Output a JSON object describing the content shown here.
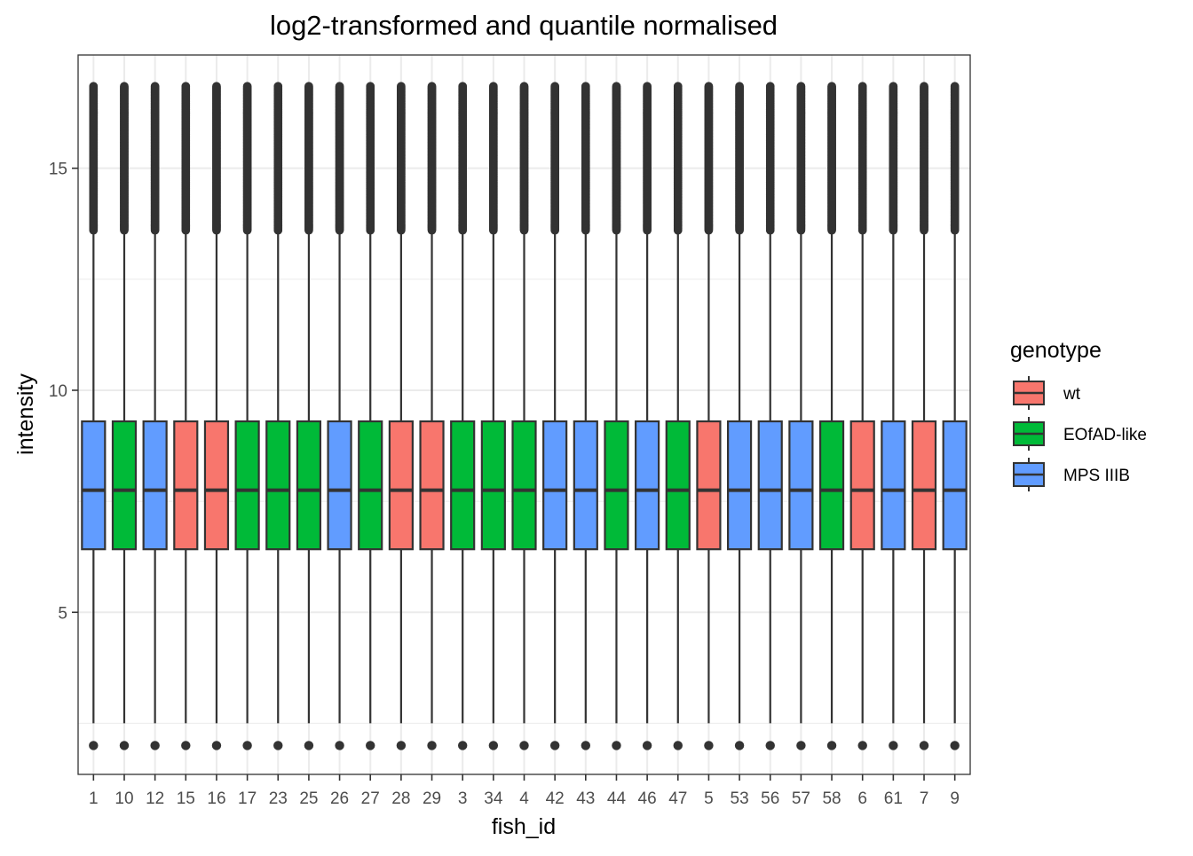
{
  "chart_data": {
    "type": "box",
    "title": "log2-transformed and quantile normalised",
    "xlabel": "fish_id",
    "ylabel": "intensity",
    "ylim": [
      1.35,
      17.55
    ],
    "yticks": [
      5,
      10,
      15
    ],
    "y_minor_gridlines": [
      2.5,
      7.5,
      12.5
    ],
    "grid": true,
    "legend": {
      "title": "genotype",
      "placement": "right",
      "entries": [
        {
          "label": "wt",
          "color": "#F8766D"
        },
        {
          "label": "EOfAD-like",
          "color": "#00BA38"
        },
        {
          "label": "MPS IIIB",
          "color": "#619CFF"
        }
      ]
    },
    "categories": [
      "1",
      "10",
      "12",
      "15",
      "16",
      "17",
      "23",
      "25",
      "26",
      "27",
      "28",
      "29",
      "3",
      "34",
      "4",
      "42",
      "43",
      "44",
      "46",
      "47",
      "5",
      "53",
      "56",
      "57",
      "58",
      "6",
      "61",
      "7",
      "9"
    ],
    "genotype": [
      "MPS IIIB",
      "EOfAD-like",
      "MPS IIIB",
      "wt",
      "wt",
      "EOfAD-like",
      "EOfAD-like",
      "EOfAD-like",
      "MPS IIIB",
      "EOfAD-like",
      "wt",
      "wt",
      "EOfAD-like",
      "EOfAD-like",
      "EOfAD-like",
      "MPS IIIB",
      "MPS IIIB",
      "EOfAD-like",
      "MPS IIIB",
      "EOfAD-like",
      "wt",
      "MPS IIIB",
      "MPS IIIB",
      "MPS IIIB",
      "EOfAD-like",
      "wt",
      "MPS IIIB",
      "wt",
      "MPS IIIB"
    ],
    "box_stats": {
      "whisker_low": 2.5,
      "q1": 6.42,
      "median": 7.75,
      "q3": 9.3,
      "whisker_high": 13.6,
      "outliers_high_from": 13.6,
      "outliers_high_to": 16.85,
      "outlier_low": 2.0
    }
  }
}
